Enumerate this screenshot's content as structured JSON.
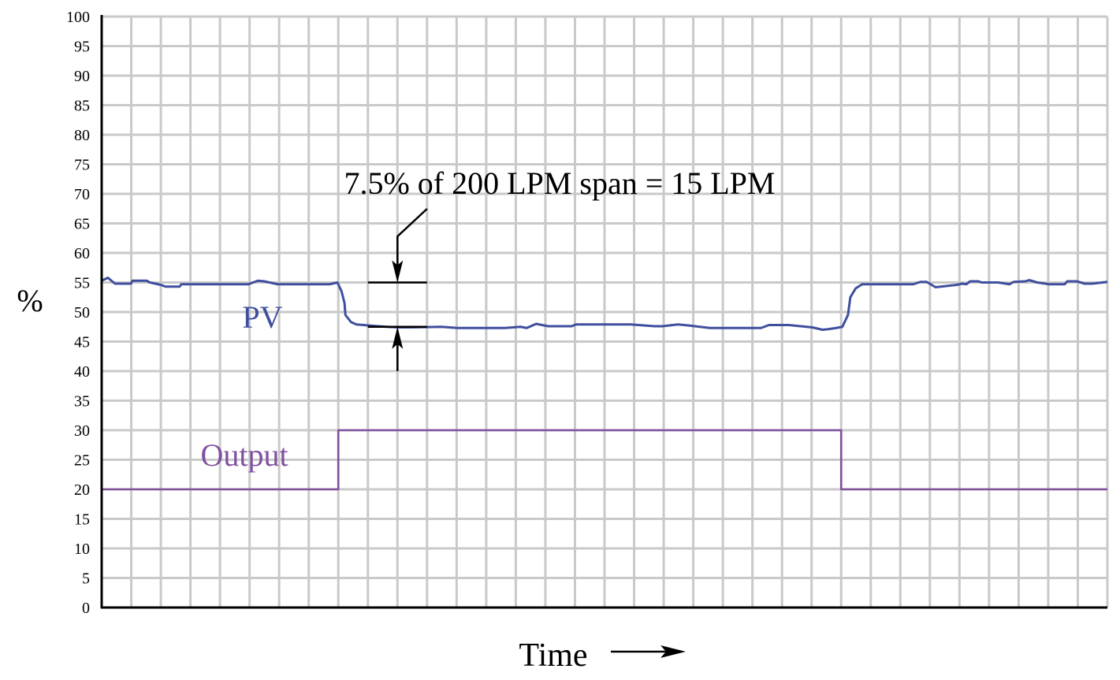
{
  "chart_data": {
    "type": "line",
    "title": "",
    "xlabel": "Time",
    "ylabel": "%",
    "ylim": [
      0,
      100
    ],
    "xlim": [
      0,
      34
    ],
    "yticks": [
      0,
      5,
      10,
      15,
      20,
      25,
      30,
      35,
      40,
      45,
      50,
      55,
      60,
      65,
      70,
      75,
      80,
      85,
      90,
      95,
      100
    ],
    "grid": true,
    "colors": {
      "pv": "#3f4f9e",
      "output": "#80509f",
      "grid": "#c9c9c9",
      "axis": "#000000"
    },
    "series": [
      {
        "name": "PV",
        "points": [
          [
            0,
            55.3
          ],
          [
            0.21,
            55.8
          ],
          [
            0.45,
            54.8
          ],
          [
            0.99,
            54.8
          ],
          [
            1.04,
            55.3
          ],
          [
            1.52,
            55.3
          ],
          [
            1.63,
            55
          ],
          [
            2,
            54.6
          ],
          [
            2.16,
            54.3
          ],
          [
            2.64,
            54.3
          ],
          [
            2.69,
            54.7
          ],
          [
            4.96,
            54.7
          ],
          [
            5.28,
            55.3
          ],
          [
            5.49,
            55.2
          ],
          [
            5.95,
            54.7
          ],
          [
            7.71,
            54.7
          ],
          [
            7.97,
            55
          ],
          [
            8.11,
            53.5
          ],
          [
            8.21,
            51.5
          ],
          [
            8.24,
            49.5
          ],
          [
            8.43,
            48.3
          ],
          [
            8.61,
            47.9
          ],
          [
            9.09,
            47.7
          ],
          [
            9.63,
            47.5
          ],
          [
            10.03,
            47.4
          ],
          [
            10.43,
            47.4
          ],
          [
            11.49,
            47.5
          ],
          [
            12.03,
            47.3
          ],
          [
            13.63,
            47.3
          ],
          [
            14.16,
            47.5
          ],
          [
            14.37,
            47.3
          ],
          [
            14.69,
            48
          ],
          [
            15.09,
            47.6
          ],
          [
            15.89,
            47.6
          ],
          [
            16.03,
            47.9
          ],
          [
            17.89,
            47.9
          ],
          [
            18.69,
            47.6
          ],
          [
            18.96,
            47.6
          ],
          [
            19.49,
            47.9
          ],
          [
            19.89,
            47.7
          ],
          [
            20.56,
            47.3
          ],
          [
            22.29,
            47.3
          ],
          [
            22.56,
            47.8
          ],
          [
            23.23,
            47.8
          ],
          [
            24.03,
            47.4
          ],
          [
            24.37,
            47
          ],
          [
            24.56,
            47.1
          ],
          [
            24.83,
            47.3
          ],
          [
            25.04,
            47.5
          ],
          [
            25.23,
            49.5
          ],
          [
            25.31,
            52.5
          ],
          [
            25.49,
            54
          ],
          [
            25.71,
            54.7
          ],
          [
            27.44,
            54.7
          ],
          [
            27.68,
            55.1
          ],
          [
            27.89,
            55.1
          ],
          [
            28.19,
            54.2
          ],
          [
            28.91,
            54.6
          ],
          [
            29.09,
            54.8
          ],
          [
            29.23,
            54.7
          ],
          [
            29.36,
            55.2
          ],
          [
            29.63,
            55.2
          ],
          [
            29.76,
            55
          ],
          [
            30.29,
            55
          ],
          [
            30.69,
            54.7
          ],
          [
            30.83,
            55.1
          ],
          [
            31.23,
            55.2
          ],
          [
            31.36,
            55.4
          ],
          [
            31.63,
            55
          ],
          [
            32.03,
            54.7
          ],
          [
            32.56,
            54.7
          ],
          [
            32.64,
            55.2
          ],
          [
            32.96,
            55.2
          ],
          [
            33.23,
            54.8
          ],
          [
            33.49,
            54.8
          ],
          [
            34,
            55.1
          ]
        ]
      },
      {
        "name": "Output",
        "points": [
          [
            0,
            20
          ],
          [
            8,
            20
          ],
          [
            8,
            30
          ],
          [
            25,
            30
          ],
          [
            25,
            20
          ],
          [
            34,
            20
          ]
        ]
      }
    ],
    "annotation": {
      "text": "7.5% of 200 LPM span = 15 LPM",
      "upper_level": 55,
      "lower_level": 47.5,
      "x": 10
    }
  }
}
